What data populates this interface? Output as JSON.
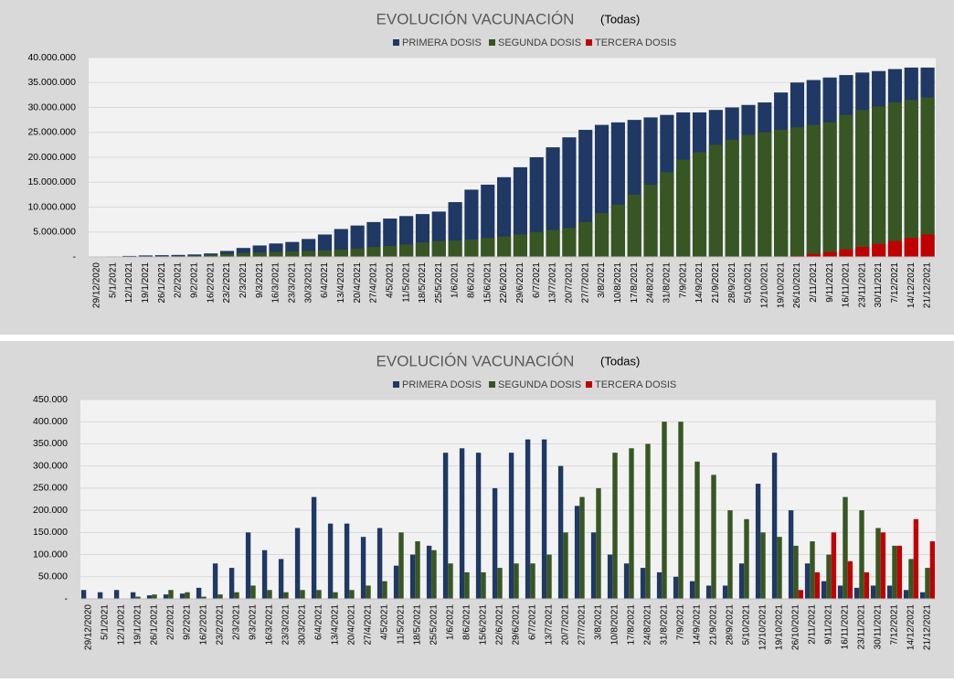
{
  "chart_data": [
    {
      "type": "bar",
      "barmode": "overlay",
      "title": "EVOLUCIÓN VACUNACIÓN",
      "subtitle": "(Todas)",
      "legend": "top",
      "grid": true,
      "categories": [
        "29/12/2020",
        "5/1/2021",
        "12/1/2021",
        "19/1/2021",
        "26/1/2021",
        "2/2/2021",
        "9/2/2021",
        "16/2/2021",
        "23/2/2021",
        "2/3/2021",
        "9/3/2021",
        "16/3/2021",
        "23/3/2021",
        "30/3/2021",
        "6/4/2021",
        "13/4/2021",
        "20/4/2021",
        "27/4/2021",
        "4/5/2021",
        "11/5/2021",
        "18/5/2021",
        "25/5/2021",
        "1/6/2021",
        "8/6/2021",
        "15/6/2021",
        "22/6/2021",
        "29/6/2021",
        "6/7/2021",
        "13/7/2021",
        "20/7/2021",
        "27/7/2021",
        "3/8/2021",
        "10/8/2021",
        "17/8/2021",
        "24/8/2021",
        "31/8/2021",
        "7/9/2021",
        "14/9/2021",
        "21/9/2021",
        "28/9/2021",
        "5/10/2021",
        "12/10/2021",
        "19/10/2021",
        "26/10/2021",
        "2/11/2021",
        "9/11/2021",
        "16/11/2021",
        "23/11/2021",
        "30/11/2021",
        "7/12/2021",
        "14/12/2021",
        "21/12/2021"
      ],
      "series": [
        {
          "name": "PRIMERA DOSIS",
          "color": "#1f3864",
          "values": [
            0,
            100000,
            200000,
            300000,
            350000,
            400000,
            500000,
            700000,
            1200000,
            1800000,
            2300000,
            2700000,
            3000000,
            3600000,
            4500000,
            5600000,
            6300000,
            7000000,
            7700000,
            8200000,
            8600000,
            9100000,
            11000000,
            13500000,
            14500000,
            16000000,
            18000000,
            20000000,
            22000000,
            24000000,
            25500000,
            26500000,
            27000000,
            27500000,
            28000000,
            28500000,
            29000000,
            29000000,
            29500000,
            30000000,
            30500000,
            31000000,
            33000000,
            35000000,
            35500000,
            36000000,
            36500000,
            37000000,
            37300000,
            37700000,
            38000000,
            38000000
          ]
        },
        {
          "name": "SEGUNDA DOSIS",
          "color": "#375623",
          "values": [
            0,
            0,
            0,
            0,
            50000,
            150000,
            250000,
            400000,
            600000,
            800000,
            900000,
            1000000,
            1100000,
            1200000,
            1300000,
            1500000,
            1700000,
            2000000,
            2200000,
            2500000,
            2900000,
            3200000,
            3300000,
            3500000,
            3800000,
            4100000,
            4500000,
            5000000,
            5400000,
            5800000,
            7000000,
            8800000,
            10500000,
            12500000,
            14500000,
            17000000,
            19500000,
            21000000,
            22500000,
            23500000,
            24500000,
            25000000,
            25500000,
            26000000,
            26500000,
            27000000,
            28500000,
            29500000,
            30200000,
            31000000,
            31500000,
            32000000
          ]
        },
        {
          "name": "TERCERA DOSIS",
          "color": "#c00000",
          "values": [
            0,
            0,
            0,
            0,
            0,
            0,
            0,
            0,
            0,
            0,
            0,
            0,
            0,
            0,
            0,
            0,
            0,
            0,
            0,
            0,
            0,
            0,
            0,
            0,
            0,
            0,
            0,
            0,
            0,
            0,
            0,
            0,
            0,
            0,
            0,
            0,
            0,
            0,
            0,
            0,
            0,
            0,
            0,
            200000,
            600000,
            1000000,
            1500000,
            2000000,
            2600000,
            3200000,
            3800000,
            4500000
          ]
        }
      ],
      "ylim": [
        0,
        40000000
      ],
      "yticks": [
        {
          "value": 0,
          "label": "-"
        },
        {
          "value": 5000000,
          "label": "5.000.000"
        },
        {
          "value": 10000000,
          "label": "10.000.000"
        },
        {
          "value": 15000000,
          "label": "15.000.000"
        },
        {
          "value": 20000000,
          "label": "20.000.000"
        },
        {
          "value": 25000000,
          "label": "25.000.000"
        },
        {
          "value": 30000000,
          "label": "30.000.000"
        },
        {
          "value": 35000000,
          "label": "35.000.000"
        },
        {
          "value": 40000000,
          "label": "40.000.000"
        }
      ]
    },
    {
      "type": "bar",
      "barmode": "group",
      "title": "EVOLUCIÓN VACUNACIÓN",
      "subtitle": "(Todas)",
      "legend": "top",
      "grid": true,
      "categories": [
        "29/12/2020",
        "5/1/2021",
        "12/1/2021",
        "19/1/2021",
        "26/1/2021",
        "2/2/2021",
        "9/2/2021",
        "16/2/2021",
        "23/2/2021",
        "2/3/2021",
        "9/3/2021",
        "16/3/2021",
        "23/3/2021",
        "30/3/2021",
        "6/4/2021",
        "13/4/2021",
        "20/4/2021",
        "27/4/2021",
        "4/5/2021",
        "11/5/2021",
        "18/5/2021",
        "25/5/2021",
        "1/6/2021",
        "8/6/2021",
        "15/6/2021",
        "22/6/2021",
        "29/6/2021",
        "6/7/2021",
        "13/7/2021",
        "20/7/2021",
        "27/7/2021",
        "3/8/2021",
        "10/8/2021",
        "17/8/2021",
        "24/8/2021",
        "31/8/2021",
        "7/9/2021",
        "14/9/2021",
        "21/9/2021",
        "28/9/2021",
        "5/10/2021",
        "12/10/2021",
        "19/10/2021",
        "26/10/2021",
        "2/11/2021",
        "9/11/2021",
        "16/11/2021",
        "23/11/2021",
        "30/11/2021",
        "7/12/2021",
        "14/12/2021",
        "21/12/2021"
      ],
      "series": [
        {
          "name": "PRIMERA DOSIS",
          "color": "#1f3864",
          "values": [
            20000,
            15000,
            20000,
            15000,
            8000,
            10000,
            12000,
            25000,
            80000,
            70000,
            150000,
            110000,
            90000,
            160000,
            230000,
            170000,
            170000,
            140000,
            160000,
            75000,
            100000,
            120000,
            330000,
            340000,
            330000,
            250000,
            330000,
            360000,
            360000,
            300000,
            210000,
            150000,
            100000,
            80000,
            70000,
            60000,
            50000,
            40000,
            30000,
            30000,
            80000,
            260000,
            330000,
            200000,
            80000,
            40000,
            30000,
            25000,
            30000,
            30000,
            20000,
            15000
          ]
        },
        {
          "name": "SEGUNDA DOSIS",
          "color": "#375623",
          "values": [
            0,
            0,
            0,
            5000,
            10000,
            20000,
            15000,
            5000,
            10000,
            15000,
            30000,
            20000,
            15000,
            20000,
            20000,
            15000,
            20000,
            30000,
            40000,
            150000,
            130000,
            110000,
            80000,
            60000,
            60000,
            70000,
            80000,
            80000,
            100000,
            150000,
            230000,
            250000,
            330000,
            340000,
            350000,
            400000,
            400000,
            310000,
            280000,
            200000,
            180000,
            150000,
            140000,
            120000,
            130000,
            100000,
            230000,
            200000,
            160000,
            120000,
            90000,
            70000
          ]
        },
        {
          "name": "TERCERA DOSIS",
          "color": "#c00000",
          "values": [
            0,
            0,
            0,
            0,
            0,
            0,
            0,
            0,
            0,
            0,
            0,
            0,
            0,
            0,
            0,
            0,
            0,
            0,
            0,
            0,
            0,
            0,
            0,
            0,
            0,
            0,
            0,
            0,
            0,
            0,
            0,
            0,
            0,
            0,
            0,
            0,
            0,
            0,
            0,
            0,
            0,
            0,
            0,
            20000,
            60000,
            150000,
            85000,
            60000,
            150000,
            120000,
            180000,
            130000
          ]
        }
      ],
      "ylim": [
        0,
        450000
      ],
      "yticks": [
        {
          "value": 0,
          "label": "-"
        },
        {
          "value": 50000,
          "label": "50.000"
        },
        {
          "value": 100000,
          "label": "100.000"
        },
        {
          "value": 150000,
          "label": "150.000"
        },
        {
          "value": 200000,
          "label": "200.000"
        },
        {
          "value": 250000,
          "label": "250.000"
        },
        {
          "value": 300000,
          "label": "300.000"
        },
        {
          "value": 350000,
          "label": "350.000"
        },
        {
          "value": 400000,
          "label": "400.000"
        },
        {
          "value": 450000,
          "label": "450.000"
        }
      ]
    }
  ]
}
